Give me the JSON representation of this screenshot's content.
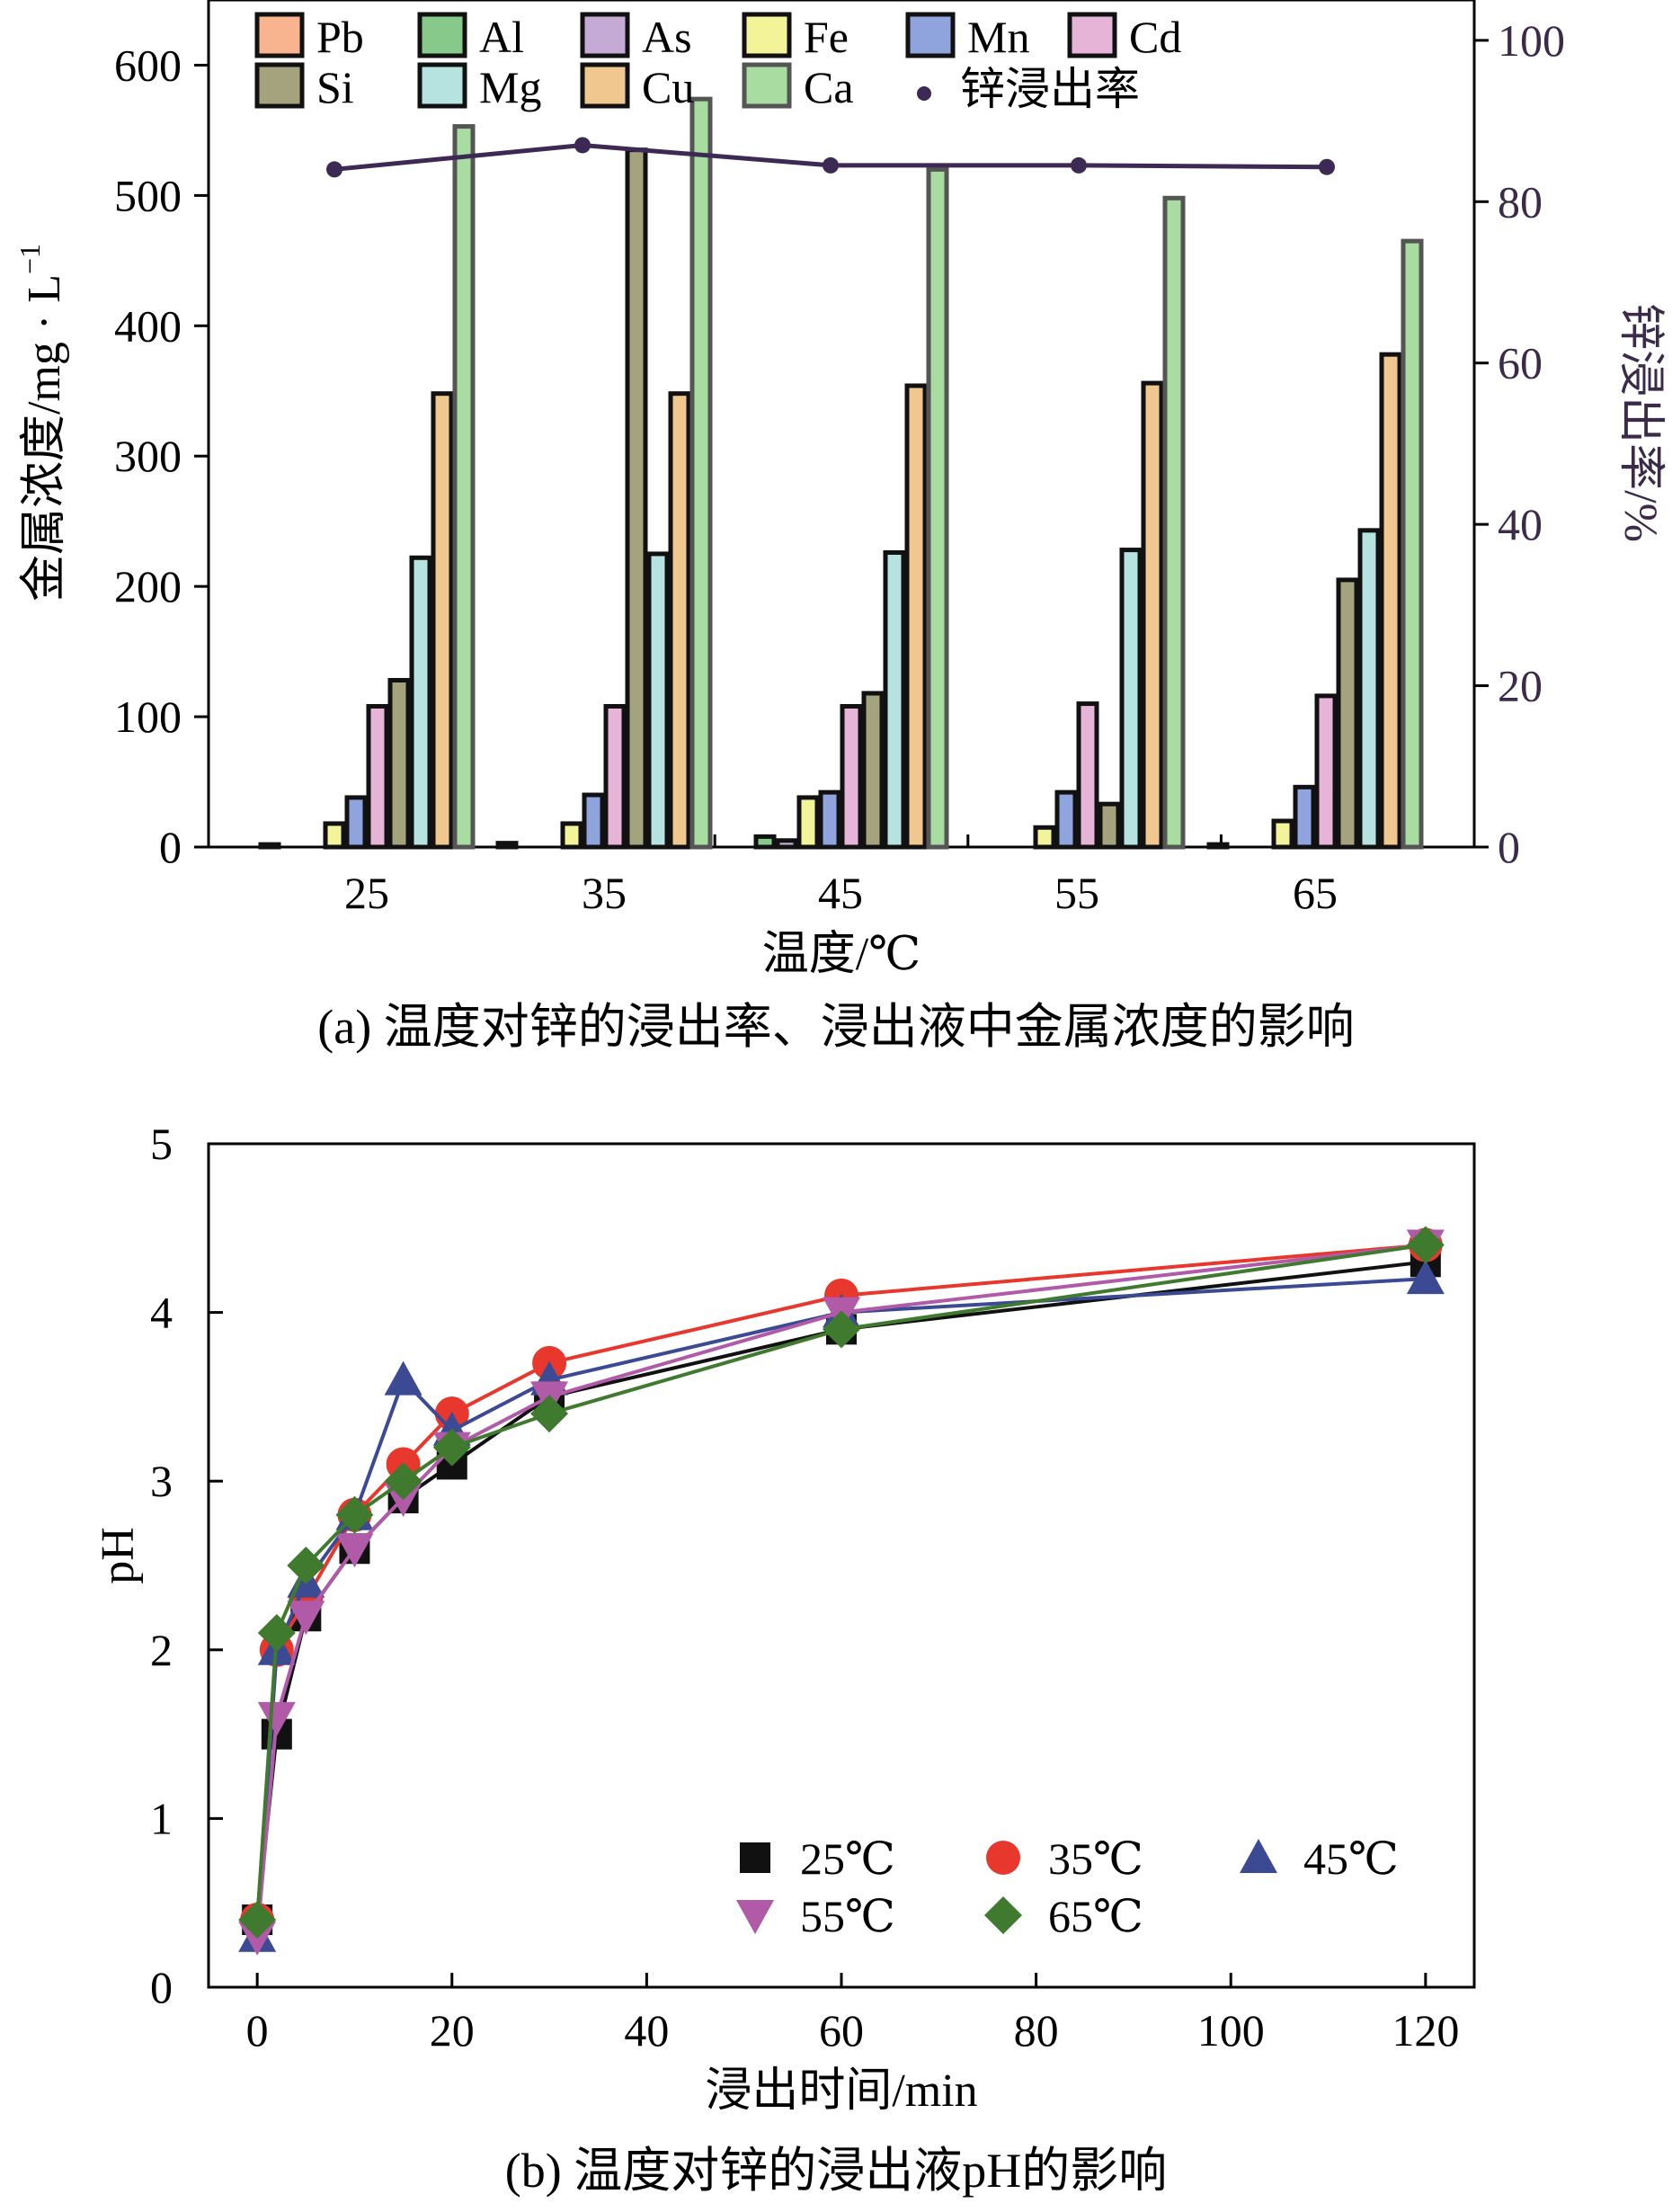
{
  "chart_data": [
    {
      "type": "bar",
      "caption": "(a) 温度对锌的浸出率、浸出液中金属浓度的影响",
      "xlabel": "温度/℃",
      "ylabel": "金属浓度/mg · L",
      "ylabel_sup": "−1",
      "y2label": "锌浸出率/%",
      "categories": [
        "25",
        "35",
        "45",
        "55",
        "65"
      ],
      "ylim": [
        0,
        650
      ],
      "yticks": [
        "0",
        "100",
        "200",
        "300",
        "400",
        "500",
        "600"
      ],
      "y2lim": [
        0,
        105
      ],
      "y2ticks": [
        "0",
        "20",
        "40",
        "60",
        "80",
        "100"
      ],
      "legend_position": "top",
      "series": [
        {
          "name": "Pb",
          "color": "#f7b48e",
          "values": [
            2,
            3,
            0,
            0,
            2
          ]
        },
        {
          "name": "Al",
          "color": "#86c98a",
          "values": [
            0,
            0,
            8,
            0,
            0
          ]
        },
        {
          "name": "As",
          "color": "#c4aad4",
          "values": [
            0,
            0,
            5,
            0,
            0
          ]
        },
        {
          "name": "Fe",
          "color": "#f3f39a",
          "values": [
            18,
            18,
            38,
            15,
            20
          ]
        },
        {
          "name": "Mn",
          "color": "#8fa4dc",
          "values": [
            38,
            40,
            42,
            42,
            46
          ]
        },
        {
          "name": "Cd",
          "color": "#e6b4d6",
          "values": [
            108,
            108,
            108,
            110,
            116
          ]
        },
        {
          "name": "Si",
          "color": "#a5a27e",
          "values": [
            128,
            535,
            118,
            33,
            205
          ]
        },
        {
          "name": "Mg",
          "color": "#b6e2e0",
          "values": [
            222,
            225,
            226,
            228,
            243
          ]
        },
        {
          "name": "Cu",
          "color": "#f0c88f",
          "values": [
            348,
            348,
            354,
            356,
            378
          ]
        },
        {
          "name": "Ca",
          "color": "#a8dca0",
          "values": [
            553,
            574,
            520,
            498,
            465
          ]
        }
      ],
      "line_series": {
        "name": "锌浸出率",
        "color": "#3c2a55",
        "values": [
          84,
          87,
          84.5,
          84.5,
          84.3
        ]
      }
    },
    {
      "type": "line",
      "caption": "(b) 温度对锌的浸出液pH的影响",
      "xlabel": "浸出时间/min",
      "ylabel": "pH",
      "xlim": [
        -5,
        125
      ],
      "ylim": [
        0,
        5
      ],
      "xticks": [
        "0",
        "20",
        "40",
        "60",
        "80",
        "100",
        "120"
      ],
      "yticks": [
        "0",
        "1",
        "2",
        "3",
        "4",
        "5"
      ],
      "x": [
        0,
        2,
        5,
        10,
        15,
        20,
        30,
        60,
        120
      ],
      "legend_position": "bottom-right",
      "series": [
        {
          "name": "25℃",
          "color": "#111111",
          "marker": "square",
          "values": [
            0.4,
            1.5,
            2.2,
            2.6,
            2.9,
            3.1,
            3.5,
            3.9,
            4.3
          ]
        },
        {
          "name": "35℃",
          "color": "#e8372c",
          "marker": "circle",
          "values": [
            0.4,
            2.0,
            2.3,
            2.8,
            3.1,
            3.4,
            3.7,
            4.1,
            4.4
          ]
        },
        {
          "name": "45℃",
          "color": "#3c4a94",
          "marker": "triangle",
          "values": [
            0.3,
            2.0,
            2.4,
            2.8,
            3.6,
            3.3,
            3.6,
            4.0,
            4.2
          ]
        },
        {
          "name": "55℃",
          "color": "#b05aa8",
          "marker": "triangle-down",
          "values": [
            0.3,
            1.6,
            2.2,
            2.6,
            2.9,
            3.2,
            3.5,
            4.0,
            4.4
          ]
        },
        {
          "name": "65℃",
          "color": "#3f7a2e",
          "marker": "diamond",
          "values": [
            0.4,
            2.1,
            2.5,
            2.8,
            3.0,
            3.2,
            3.4,
            3.9,
            4.4
          ]
        }
      ]
    }
  ]
}
